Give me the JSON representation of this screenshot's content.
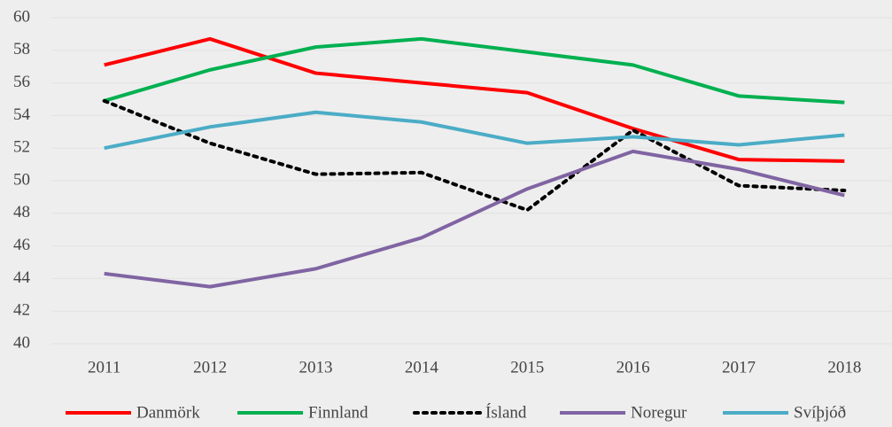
{
  "chart_data": {
    "type": "line",
    "categories": [
      "2011",
      "2012",
      "2013",
      "2014",
      "2015",
      "2016",
      "2017",
      "2018"
    ],
    "series": [
      {
        "name": "Danmörk",
        "color": "#ff0000",
        "values": [
          57.1,
          58.7,
          56.6,
          56.0,
          55.4,
          53.2,
          51.3,
          51.2
        ]
      },
      {
        "name": "Finnland",
        "color": "#00b050",
        "values": [
          54.9,
          56.8,
          58.2,
          58.7,
          57.9,
          57.1,
          55.2,
          54.8
        ]
      },
      {
        "name": "Ísland",
        "color": "#000000",
        "dotted": true,
        "values": [
          54.9,
          52.3,
          50.4,
          50.5,
          48.2,
          53.1,
          49.7,
          49.4
        ]
      },
      {
        "name": "Noregur",
        "color": "#8064a2",
        "values": [
          44.3,
          43.5,
          44.6,
          46.5,
          49.5,
          51.8,
          50.7,
          49.1
        ]
      },
      {
        "name": "Svíþjóð",
        "color": "#4bacc6",
        "values": [
          52.0,
          53.3,
          54.2,
          53.6,
          52.3,
          52.7,
          52.2,
          52.8
        ]
      }
    ],
    "ylim": [
      40,
      60
    ],
    "yticks": [
      40,
      42,
      44,
      46,
      48,
      50,
      52,
      54,
      56,
      58,
      60
    ],
    "grid": true,
    "legend": "bottom"
  }
}
